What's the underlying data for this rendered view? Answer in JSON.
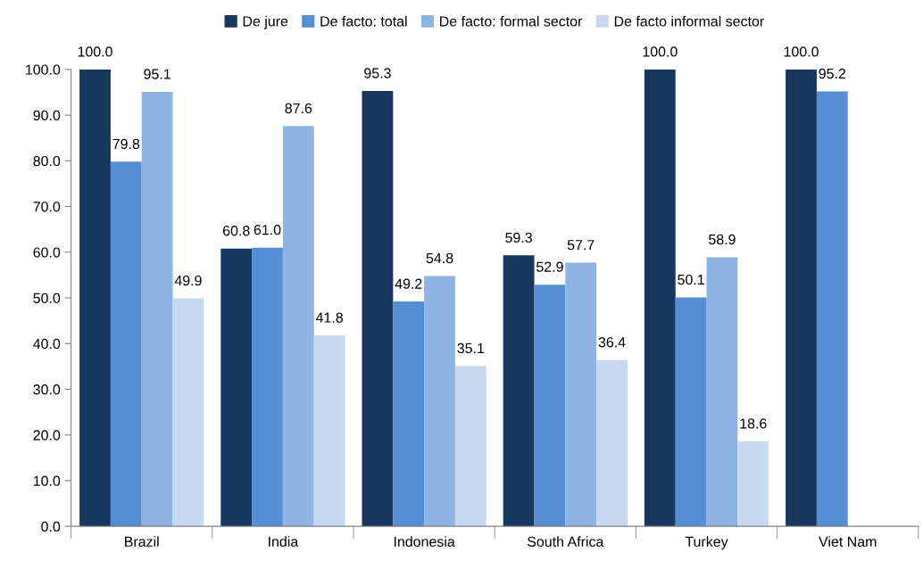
{
  "chart_data": {
    "type": "bar",
    "categories": [
      "Brazil",
      "India",
      "Indonesia",
      "South Africa",
      "Turkey",
      "Viet Nam"
    ],
    "series": [
      {
        "name": "De jure",
        "color": "#17375e",
        "values": [
          100.0,
          60.8,
          95.3,
          59.3,
          100.0,
          100.0
        ],
        "value_labels": [
          "100.0",
          "60.8",
          "95.3",
          "59.3",
          "100.0",
          "100.0"
        ]
      },
      {
        "name": "De facto: total",
        "color": "#558ed5",
        "values": [
          79.8,
          61.0,
          49.2,
          52.9,
          50.1,
          95.2
        ],
        "value_labels": [
          "79.8",
          "61.0",
          "49.2",
          "52.9",
          "50.1",
          "95.2"
        ]
      },
      {
        "name": "De facto: formal sector",
        "color": "#8eb4e3",
        "values": [
          95.1,
          87.6,
          54.8,
          57.7,
          58.9,
          null
        ],
        "value_labels": [
          "95.1",
          "87.6",
          "54.8",
          "57.7",
          "58.9",
          null
        ]
      },
      {
        "name": "De facto informal sector",
        "color": "#c6d9f1",
        "values": [
          49.9,
          41.8,
          35.1,
          36.4,
          18.6,
          null
        ],
        "value_labels": [
          "49.9",
          "41.8",
          "35.1",
          "36.4",
          "18.6",
          null
        ]
      }
    ],
    "ylim": [
      0,
      100
    ],
    "yticks": [
      {
        "value": 0,
        "label": "0.0"
      },
      {
        "value": 10,
        "label": "10.0"
      },
      {
        "value": 20,
        "label": "20.0"
      },
      {
        "value": 30,
        "label": "30.0"
      },
      {
        "value": 40,
        "label": "40.0"
      },
      {
        "value": 50,
        "label": "50.0"
      },
      {
        "value": 60,
        "label": "60.0"
      },
      {
        "value": 70,
        "label": "70.0"
      },
      {
        "value": 80,
        "label": "80.0"
      },
      {
        "value": 90,
        "label": "90.0"
      },
      {
        "value": 100,
        "label": "100.0"
      }
    ],
    "grid": false,
    "legend": "top"
  }
}
